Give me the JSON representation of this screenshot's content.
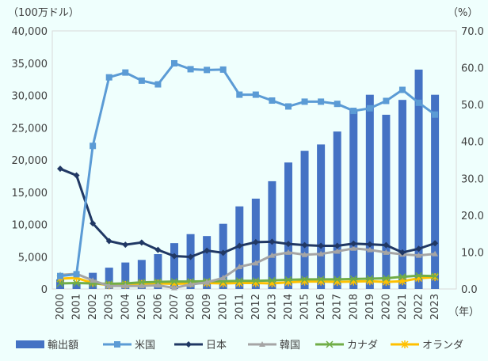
{
  "chart_data": {
    "type": "bar+line",
    "left_unit": "（100万ドル）",
    "right_unit": "（%）",
    "x_unit": "（年）",
    "categories": [
      "2000",
      "2001",
      "2002",
      "2003",
      "2004",
      "2005",
      "2006",
      "2007",
      "2008",
      "2009",
      "2010",
      "2011",
      "2012",
      "2013",
      "2014",
      "2015",
      "2016",
      "2017",
      "2018",
      "2019",
      "2020",
      "2021",
      "2022",
      "2023"
    ],
    "left_ylim": [
      0,
      40000
    ],
    "left_ticks": [
      "0",
      "5,000",
      "10,000",
      "15,000",
      "20,000",
      "25,000",
      "30,000",
      "35,000",
      "40,000"
    ],
    "right_ylim": [
      0,
      70
    ],
    "right_ticks": [
      "0.0",
      "10.0",
      "20.0",
      "30.0",
      "40.0",
      "50.0",
      "60.0",
      "70.0"
    ],
    "bars": {
      "name": "輸出額",
      "color": "#4472c4",
      "values": [
        1500,
        1000,
        2500,
        3300,
        4100,
        4500,
        5400,
        7100,
        8500,
        8200,
        10100,
        12800,
        14000,
        16700,
        19600,
        21400,
        22400,
        24400,
        27800,
        30100,
        27000,
        29300,
        34000,
        30100
      ]
    },
    "series": [
      {
        "name": "米国",
        "color": "#5b9bd5",
        "marker": "square",
        "values": [
          3.5,
          4.0,
          38.8,
          57.4,
          58.7,
          56.5,
          55.5,
          61.2,
          59.6,
          59.4,
          59.5,
          52.7,
          52.7,
          51.1,
          49.5,
          50.8,
          50.8,
          50.2,
          48.3,
          49.0,
          51.0,
          54.0,
          50.5,
          47.3
        ]
      },
      {
        "name": "日本",
        "color": "#203864",
        "marker": "diamond",
        "values": [
          32.6,
          30.8,
          17.8,
          13.0,
          12.0,
          12.6,
          10.6,
          8.9,
          8.7,
          10.4,
          9.8,
          11.7,
          12.7,
          12.8,
          12.2,
          11.9,
          11.7,
          11.7,
          12.3,
          12.1,
          11.9,
          9.9,
          10.9,
          12.4
        ]
      },
      {
        "name": "韓国",
        "color": "#a5a5a5",
        "marker": "triangle",
        "values": [
          3.8,
          4.1,
          2.3,
          0.8,
          0.8,
          0.8,
          1.0,
          0.3,
          1.2,
          1.8,
          3.0,
          6.0,
          7.0,
          9.1,
          9.9,
          9.3,
          9.5,
          10.2,
          11.0,
          10.6,
          9.9,
          9.4,
          9.1,
          9.5
        ]
      },
      {
        "name": "カナダ",
        "color": "#70ad47",
        "marker": "x",
        "values": [
          1.5,
          1.6,
          1.5,
          1.4,
          1.5,
          1.8,
          1.9,
          2.0,
          2.0,
          2.1,
          2.1,
          2.2,
          2.2,
          2.3,
          2.5,
          2.6,
          2.6,
          2.6,
          2.7,
          2.8,
          2.9,
          3.3,
          3.6,
          3.5
        ]
      },
      {
        "name": "オランダ",
        "color": "#ffc000",
        "marker": "star",
        "values": [
          2.8,
          3.0,
          1.6,
          1.0,
          1.1,
          1.4,
          1.5,
          1.4,
          1.5,
          1.6,
          1.5,
          1.6,
          1.6,
          1.5,
          1.8,
          2.0,
          2.0,
          1.9,
          2.0,
          2.1,
          1.9,
          2.1,
          2.9,
          3.2
        ]
      }
    ],
    "legend_position": "bottom",
    "grid": false
  }
}
